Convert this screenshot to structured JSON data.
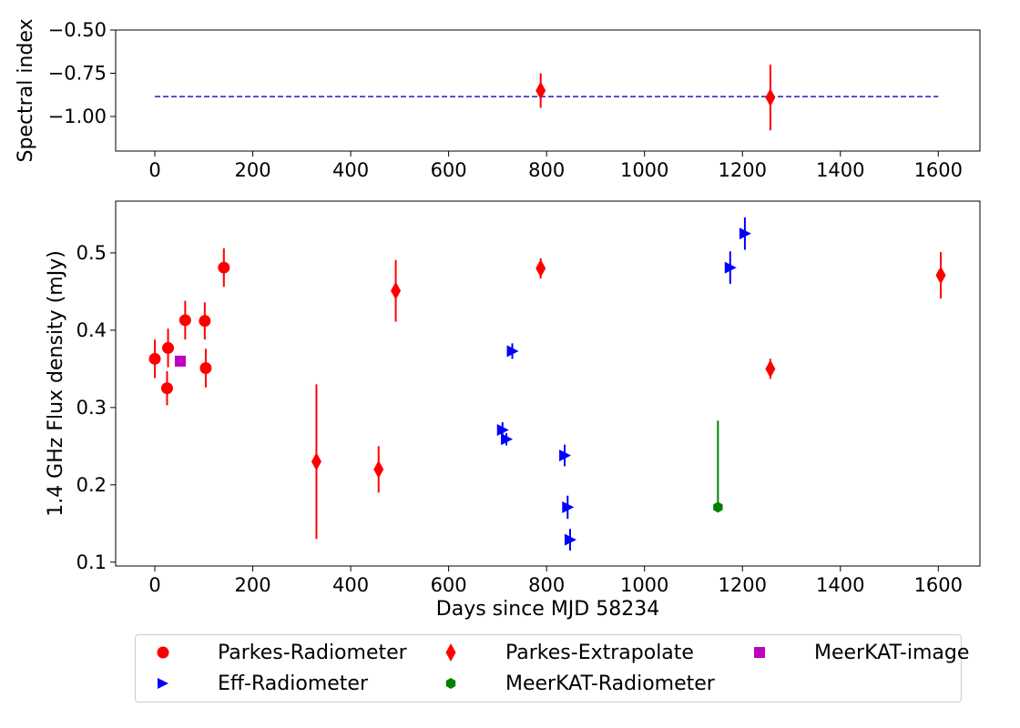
{
  "chart_data": [
    {
      "type": "scatter",
      "title": "",
      "xlabel": "",
      "ylabel": "Spectral index",
      "xlim": [
        -80,
        1685
      ],
      "ylim": [
        -1.2,
        -0.5
      ],
      "xticks": [
        0,
        200,
        400,
        600,
        800,
        1000,
        1200,
        1400,
        1600
      ],
      "yticks": [
        -1.0,
        -0.75,
        -0.5
      ],
      "ytick_labels": [
        "−1.00",
        "−0.75",
        "−0.50"
      ],
      "grid": false,
      "reference_line": {
        "x": [
          0,
          1600
        ],
        "y": -0.885,
        "style": "dashed",
        "color": "#1f1fbf"
      },
      "series": [
        {
          "marker": "diamond",
          "color": "#ff0000",
          "points": [
            {
              "x": 788,
              "y": -0.85,
              "yerr": [
                0.1,
                0.1
              ]
            },
            {
              "x": 1257,
              "y": -0.89,
              "yerr": [
                0.19,
                0.19
              ]
            }
          ]
        }
      ]
    },
    {
      "type": "scatter",
      "title": "",
      "xlabel": "Days since MJD 58234",
      "ylabel": "1.4 GHz Flux density (mJy)",
      "xlim": [
        -80,
        1685
      ],
      "ylim": [
        0.095,
        0.567
      ],
      "xticks": [
        0,
        200,
        400,
        600,
        800,
        1000,
        1200,
        1400,
        1600
      ],
      "yticks": [
        0.1,
        0.2,
        0.3,
        0.4,
        0.5
      ],
      "grid": false,
      "legend_position": "bottom-outside",
      "series": [
        {
          "name": "Parkes-Radiometer",
          "marker": "circle",
          "color": "#ff0000",
          "points": [
            {
              "x": 0,
              "y": 0.363,
              "yerr": [
                0.025,
                0.025
              ]
            },
            {
              "x": 25,
              "y": 0.325,
              "yerr": [
                0.022,
                0.022
              ]
            },
            {
              "x": 27,
              "y": 0.377,
              "yerr": [
                0.025,
                0.025
              ]
            },
            {
              "x": 62,
              "y": 0.413,
              "yerr": [
                0.025,
                0.025
              ]
            },
            {
              "x": 102,
              "y": 0.412,
              "yerr": [
                0.024,
                0.024
              ]
            },
            {
              "x": 104,
              "y": 0.351,
              "yerr": [
                0.025,
                0.025
              ]
            },
            {
              "x": 141,
              "y": 0.481,
              "yerr": [
                0.025,
                0.025
              ]
            }
          ]
        },
        {
          "name": "Eff-Radiometer",
          "marker": "triangle-right",
          "color": "#0000ff",
          "points": [
            {
              "x": 710,
              "y": 0.271,
              "yerr": [
                0.01,
                0.01
              ]
            },
            {
              "x": 718,
              "y": 0.259,
              "yerr": [
                0.008,
                0.008
              ]
            },
            {
              "x": 730,
              "y": 0.373,
              "yerr": [
                0.01,
                0.01
              ]
            },
            {
              "x": 837,
              "y": 0.238,
              "yerr": [
                0.014,
                0.014
              ]
            },
            {
              "x": 843,
              "y": 0.171,
              "yerr": [
                0.015,
                0.015
              ]
            },
            {
              "x": 848,
              "y": 0.129,
              "yerr": [
                0.014,
                0.014
              ]
            },
            {
              "x": 1175,
              "y": 0.481,
              "yerr": [
                0.021,
                0.021
              ]
            },
            {
              "x": 1205,
              "y": 0.525,
              "yerr": [
                0.021,
                0.021
              ]
            }
          ]
        },
        {
          "name": "Parkes-Extrapolate",
          "marker": "diamond",
          "color": "#ff0000",
          "points": [
            {
              "x": 330,
              "y": 0.23,
              "yerr": [
                0.1,
                0.1
              ]
            },
            {
              "x": 457,
              "y": 0.22,
              "yerr": [
                0.03,
                0.03
              ]
            },
            {
              "x": 492,
              "y": 0.451,
              "yerr": [
                0.04,
                0.04
              ]
            },
            {
              "x": 788,
              "y": 0.48,
              "yerr": [
                0.013,
                0.013
              ]
            },
            {
              "x": 1257,
              "y": 0.35,
              "yerr": [
                0.013,
                0.013
              ]
            },
            {
              "x": 1605,
              "y": 0.471,
              "yerr": [
                0.03,
                0.03
              ]
            }
          ]
        },
        {
          "name": "MeerKAT-Radiometer",
          "marker": "hexagon",
          "color": "#008000",
          "points": [
            {
              "x": 1150,
              "y": 0.171,
              "yerr": [
                0,
                0.112
              ]
            }
          ]
        },
        {
          "name": "MeerKAT-image",
          "marker": "square",
          "color": "#c000c0",
          "points": [
            {
              "x": 52,
              "y": 0.36,
              "yerr": [
                0,
                0
              ]
            }
          ]
        }
      ]
    }
  ],
  "legend": {
    "items": [
      {
        "label": "Parkes-Radiometer",
        "marker": "circle",
        "color": "#ff0000"
      },
      {
        "label": "Parkes-Extrapolate",
        "marker": "diamond",
        "color": "#ff0000"
      },
      {
        "label": "MeerKAT-image",
        "marker": "square",
        "color": "#c000c0"
      },
      {
        "label": "Eff-Radiometer",
        "marker": "triangle-right",
        "color": "#0000ff"
      },
      {
        "label": "MeerKAT-Radiometer",
        "marker": "hexagon",
        "color": "#008000"
      }
    ]
  }
}
